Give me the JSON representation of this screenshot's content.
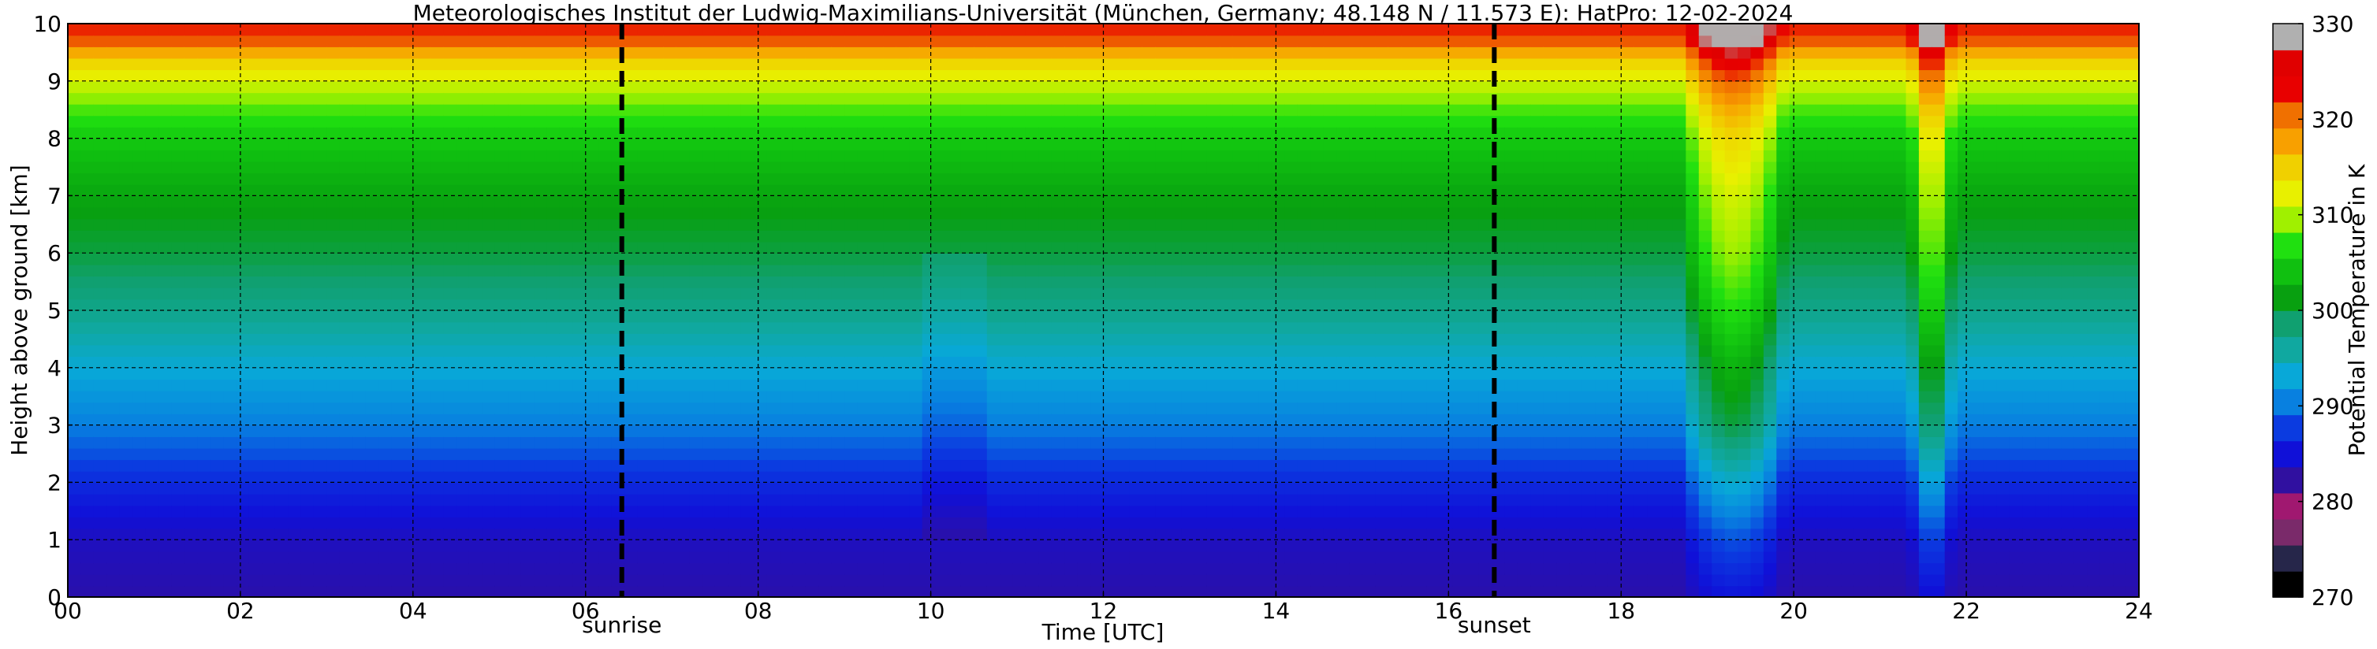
{
  "chart_data": {
    "type": "heatmap",
    "title": "Meteorologisches Institut der Ludwig-Maximilians-Universität (München, Germany; 48.148 N / 11.573 E):    HatPro: 12-02-2024",
    "xlabel": "Time [UTC]",
    "ylabel": "Height above ground [km]",
    "xlim": [
      0,
      24
    ],
    "ylim": [
      0,
      10
    ],
    "x_ticks": [
      "00",
      "02",
      "04",
      "06",
      "08",
      "10",
      "12",
      "14",
      "16",
      "18",
      "20",
      "22",
      "24"
    ],
    "y_ticks": [
      "0",
      "1",
      "2",
      "3",
      "4",
      "5",
      "6",
      "7",
      "8",
      "9",
      "10"
    ],
    "grid": true,
    "colorbar": {
      "label": "Potential Temperature in K",
      "range": [
        270,
        330
      ],
      "ticks": [
        "270",
        "280",
        "290",
        "300",
        "310",
        "320",
        "330"
      ]
    },
    "annotations": [
      {
        "label": "sunrise",
        "x": 6.42
      },
      {
        "label": "sunset",
        "x": 16.53
      }
    ],
    "data_end_x": 22.05,
    "profile_height_km": [
      0,
      1,
      2,
      3,
      4,
      5,
      6,
      7,
      8,
      8.5,
      9,
      9.4,
      9.7,
      10
    ],
    "profile_theta_K": [
      282,
      283,
      286,
      290,
      293,
      297,
      300,
      302,
      305,
      308,
      312,
      316,
      322,
      324
    ],
    "warm_events": [
      {
        "start": 18.7,
        "center": 19.3,
        "end": 19.9,
        "strength": 10
      },
      {
        "start": 21.35,
        "center": 21.6,
        "end": 21.85,
        "strength": 9
      }
    ]
  },
  "colors": {
    "scale": [
      "#000000",
      "#26264a",
      "#7a2a6a",
      "#a01870",
      "#3010a0",
      "#1010d8",
      "#0b3be0",
      "#0880e0",
      "#08a8d8",
      "#10a8a0",
      "#10a070",
      "#08a010",
      "#10c010",
      "#20e010",
      "#a0f000",
      "#e8f000",
      "#f0d000",
      "#f8a000",
      "#f07000",
      "#e80000",
      "#e00000",
      "#b0b0b0"
    ]
  }
}
